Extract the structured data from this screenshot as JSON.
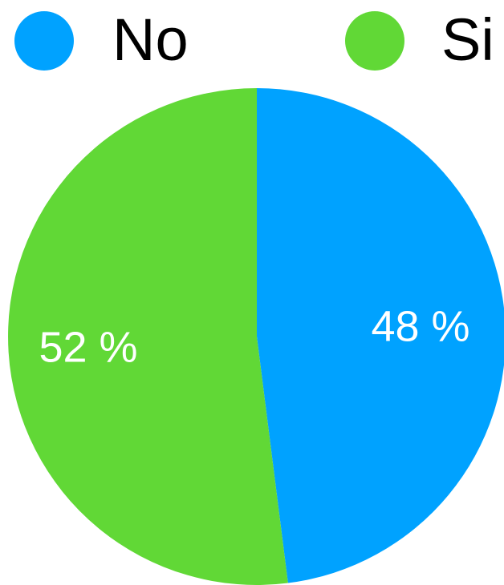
{
  "chart_data": {
    "type": "pie",
    "title": "",
    "legend_placement": "top",
    "slices": [
      {
        "label": "No",
        "value": 48,
        "value_label": "48 %",
        "color": "#00A2FF"
      },
      {
        "label": "Si",
        "value": 52,
        "value_label": "52 %",
        "color": "#61D836"
      }
    ]
  },
  "label_color": "#ffffff"
}
